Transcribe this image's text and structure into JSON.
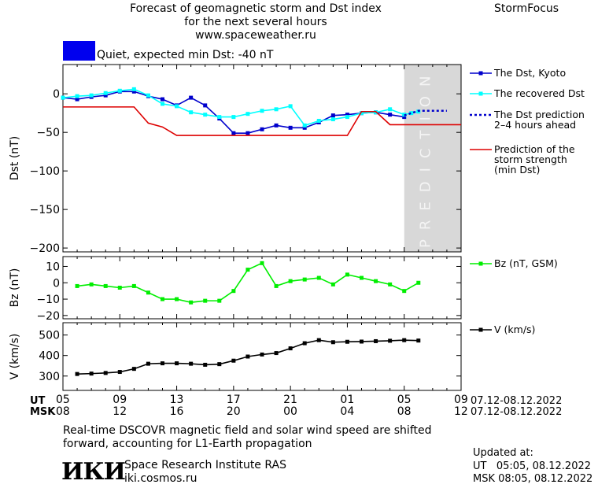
{
  "header": {
    "title_line1": "Forecast of geomagnetic storm and Dst index",
    "title_line2": "for the next several hours",
    "url": "www.spaceweather.ru",
    "brand": "StormFocus"
  },
  "status": {
    "color": "#0000ff",
    "text": "Quiet, expected min Dst: -40 nT"
  },
  "prediction_label": "PREDICTION",
  "time_axis": {
    "ut_label": "UT",
    "msk_label": "MSK",
    "ut_ticks": [
      "05",
      "09",
      "13",
      "17",
      "21",
      "01",
      "05",
      "09"
    ],
    "msk_ticks": [
      "08",
      "12",
      "16",
      "20",
      "00",
      "04",
      "08",
      "12"
    ],
    "ut_range": "07.12-08.12.2022",
    "msk_range": "07.12-08.12.2022"
  },
  "footer": {
    "note_line1": "Real-time DSCOVR magnetic field and solar wind speed are shifted",
    "note_line2": "forward, accounting for L1-Earth propagation",
    "institute_logo": "ИКИ",
    "institute_name": "Space Research Institute RAS",
    "institute_url": "iki.cosmos.ru",
    "updated_label": "Updated at:",
    "updated_ut": "UT   05:05, 08.12.2022",
    "updated_msk": "MSK 08:05, 08.12.2022"
  },
  "chart_data": [
    {
      "type": "line",
      "ylabel": "Dst (nT)",
      "ylim": [
        -205,
        38
      ],
      "yticks": [
        0,
        -50,
        -100,
        -150,
        -200
      ],
      "xlim": [
        0,
        28
      ],
      "prediction_band": [
        24,
        28
      ],
      "legend_position": "right",
      "series": [
        {
          "name": "The Dst, Kyoto",
          "color": "#0000cc",
          "marker": "square",
          "x": [
            0,
            1,
            2,
            3,
            4,
            5,
            6,
            7,
            8,
            9,
            10,
            11,
            12,
            13,
            14,
            15,
            16,
            17,
            18,
            19,
            20,
            21,
            22,
            23,
            24
          ],
          "y": [
            -5,
            -7,
            -4,
            -2,
            3,
            3,
            -3,
            -7,
            -15,
            -5,
            -15,
            -32,
            -51,
            -51,
            -46,
            -41,
            -44,
            -44,
            -37,
            -28,
            -27,
            -25,
            -24,
            -27,
            -30
          ]
        },
        {
          "name": "The recovered Dst",
          "color": "#00ffff",
          "marker": "square",
          "x": [
            0,
            1,
            2,
            3,
            4,
            5,
            6,
            7,
            8,
            9,
            10,
            11,
            12,
            13,
            14,
            15,
            16,
            17,
            18,
            19,
            20,
            21,
            22,
            23,
            24,
            24.5,
            25
          ],
          "y": [
            -5,
            -3,
            -2,
            1,
            4,
            6,
            -2,
            -13,
            -16,
            -24,
            -27,
            -30,
            -30,
            -26,
            -22,
            -20,
            -16,
            -41,
            -35,
            -33,
            -30,
            -25,
            -24,
            -20,
            -27,
            -25,
            -23
          ]
        },
        {
          "name": "The Dst prediction 2-4 hours ahead",
          "color": "#0000cc",
          "dashed": true,
          "x": [
            24,
            25,
            26,
            27
          ],
          "y": [
            -28,
            -22,
            -22,
            -22
          ]
        },
        {
          "name": "Prediction of the storm strength (min Dst)",
          "color": "#dd0000",
          "step": true,
          "x": [
            0,
            5,
            6,
            7,
            8,
            9,
            10,
            11,
            12,
            13,
            14,
            15,
            16,
            17,
            18,
            19,
            20,
            21,
            22,
            23,
            24,
            25,
            26,
            27,
            28
          ],
          "y": [
            -17,
            -17,
            -38,
            -43,
            -54,
            -54,
            -54,
            -54,
            -54,
            -54,
            -54,
            -54,
            -54,
            -54,
            -54,
            -54,
            -54,
            -23,
            -23,
            -40,
            -40,
            -40,
            -40,
            -40,
            -40
          ]
        }
      ]
    },
    {
      "type": "line",
      "ylabel": "Bz (nT)",
      "ylim": [
        -22,
        16
      ],
      "yticks": [
        10,
        0,
        -10,
        -20
      ],
      "xlim": [
        0,
        28
      ],
      "legend_position": "right",
      "series": [
        {
          "name": "Bz (nT, GSM)",
          "color": "#00ee00",
          "marker": "square",
          "x": [
            1,
            2,
            3,
            4,
            5,
            6,
            7,
            8,
            9,
            10,
            11,
            12,
            13,
            14,
            15,
            16,
            17,
            18,
            19,
            20,
            21,
            22,
            23,
            24,
            25
          ],
          "y": [
            -2,
            -1,
            -2,
            -3,
            -2,
            -6,
            -10,
            -10,
            -12,
            -11,
            -11,
            -5,
            8,
            12,
            -2,
            1,
            2,
            3,
            -1,
            5,
            3,
            1,
            -1,
            -5,
            0
          ]
        }
      ]
    },
    {
      "type": "line",
      "ylabel": "V (km/s)",
      "ylim": [
        230,
        560
      ],
      "yticks": [
        300,
        400,
        500
      ],
      "xlim": [
        0,
        28
      ],
      "legend_position": "right",
      "series": [
        {
          "name": "V (km/s)",
          "color": "#000000",
          "marker": "square",
          "x": [
            1,
            2,
            3,
            4,
            5,
            6,
            7,
            8,
            9,
            10,
            11,
            12,
            13,
            14,
            15,
            16,
            17,
            18,
            19,
            20,
            21,
            22,
            23,
            24,
            25
          ],
          "y": [
            310,
            312,
            315,
            320,
            335,
            360,
            362,
            362,
            360,
            355,
            358,
            375,
            395,
            405,
            412,
            435,
            460,
            475,
            465,
            467,
            468,
            470,
            472,
            475,
            473
          ]
        }
      ]
    }
  ]
}
